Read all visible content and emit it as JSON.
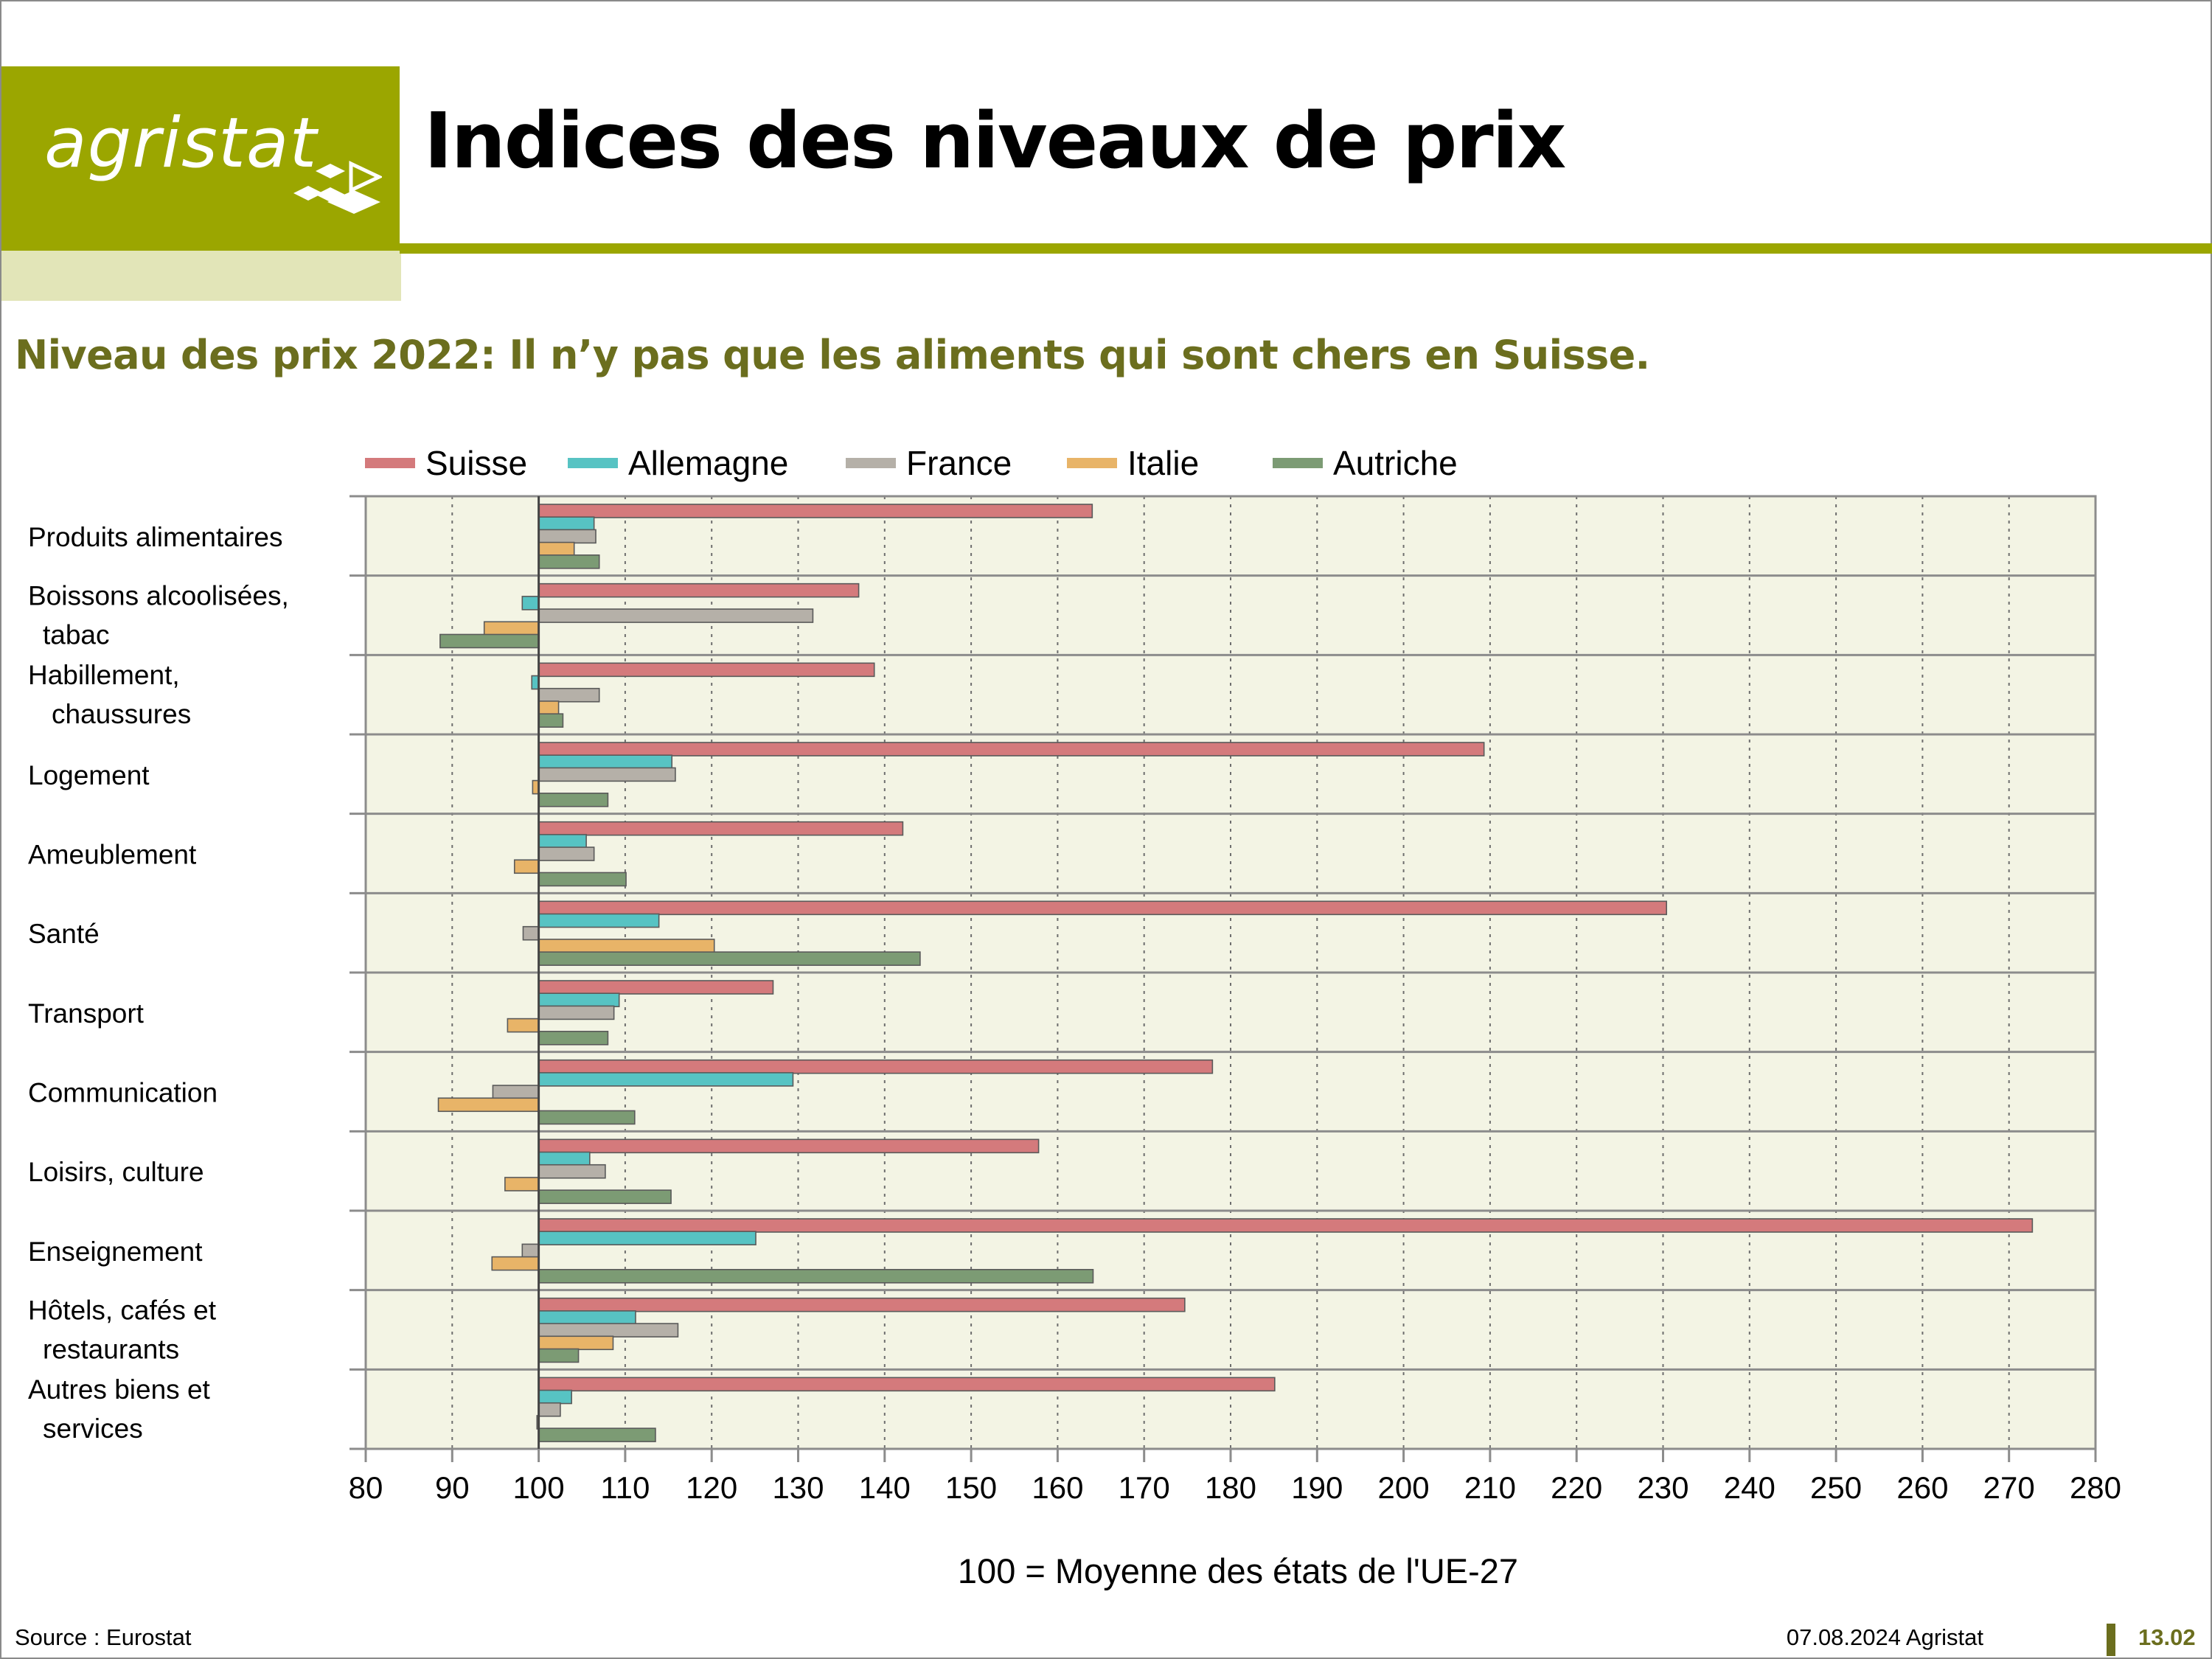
{
  "header": {
    "logo_text": "agristat",
    "title": "Indices des niveaux de prix",
    "subtitle": "Niveau des prix 2022: Il n’y pas que les aliments qui sont chers en Suisse."
  },
  "footer": {
    "source": "Source : Eurostat",
    "date": "07.08.2024 Agristat",
    "page": "13.02"
  },
  "colors": {
    "brand": "#9ba600",
    "subtitle": "#6b6e1e",
    "plot_bg": "#f3f4e4"
  },
  "chart_data": {
    "type": "bar",
    "orientation": "horizontal",
    "title": "",
    "xlabel": "100 = Moyenne des états de l'UE-27",
    "ylabel": "",
    "xlim": [
      80,
      280
    ],
    "baseline": 100,
    "x_ticks": [
      80,
      90,
      100,
      110,
      120,
      130,
      140,
      150,
      160,
      170,
      180,
      190,
      200,
      210,
      220,
      230,
      240,
      250,
      260,
      270,
      280
    ],
    "grid": "vertical dotted",
    "legend_position": "top",
    "categories": [
      "Produits alimentaires",
      "Boissons alcoolisées, tabac",
      "Habillement, chaussures",
      "Logement",
      "Ameublement",
      "Santé",
      "Transport",
      "Communication",
      "Loisirs, culture",
      "Enseignement",
      "Hôtels, cafés et restaurants",
      "Autres biens et services"
    ],
    "category_label_lines": [
      [
        "Produits alimentaires"
      ],
      [
        "Boissons alcoolisées,",
        "tabac"
      ],
      [
        "Habillement,",
        "chaussures"
      ],
      [
        "Logement"
      ],
      [
        "Ameublement"
      ],
      [
        "Santé"
      ],
      [
        "Transport"
      ],
      [
        "Communication"
      ],
      [
        "Loisirs, culture"
      ],
      [
        "Enseignement"
      ],
      [
        "Hôtels, cafés et",
        "restaurants"
      ],
      [
        "Autres biens et",
        "services"
      ]
    ],
    "series": [
      {
        "name": "Suisse",
        "color": "#d47a7c",
        "values": [
          164,
          137,
          138.8,
          209.3,
          142.1,
          230.4,
          127.1,
          177.9,
          157.8,
          272.7,
          174.7,
          185.1
        ]
      },
      {
        "name": "Allemagne",
        "color": "#57c3c3",
        "values": [
          106.4,
          98.1,
          99.2,
          115.4,
          105.5,
          113.9,
          109.3,
          129.4,
          105.9,
          125.1,
          111.2,
          103.8
        ]
      },
      {
        "name": "France",
        "color": "#b5b0a8",
        "values": [
          106.6,
          131.7,
          107,
          115.8,
          106.4,
          98.2,
          108.7,
          94.7,
          107.7,
          98.1,
          116.1,
          102.5
        ]
      },
      {
        "name": "Italie",
        "color": "#e8b468",
        "values": [
          104.1,
          93.7,
          102.3,
          99.3,
          97.2,
          120.3,
          96.4,
          88.4,
          96.1,
          94.6,
          108.6,
          99.8
        ]
      },
      {
        "name": "Autriche",
        "color": "#7c9b74",
        "values": [
          107,
          88.6,
          102.8,
          108,
          110.1,
          144.1,
          108,
          111.1,
          115.3,
          164.1,
          104.6,
          113.5
        ]
      }
    ]
  }
}
